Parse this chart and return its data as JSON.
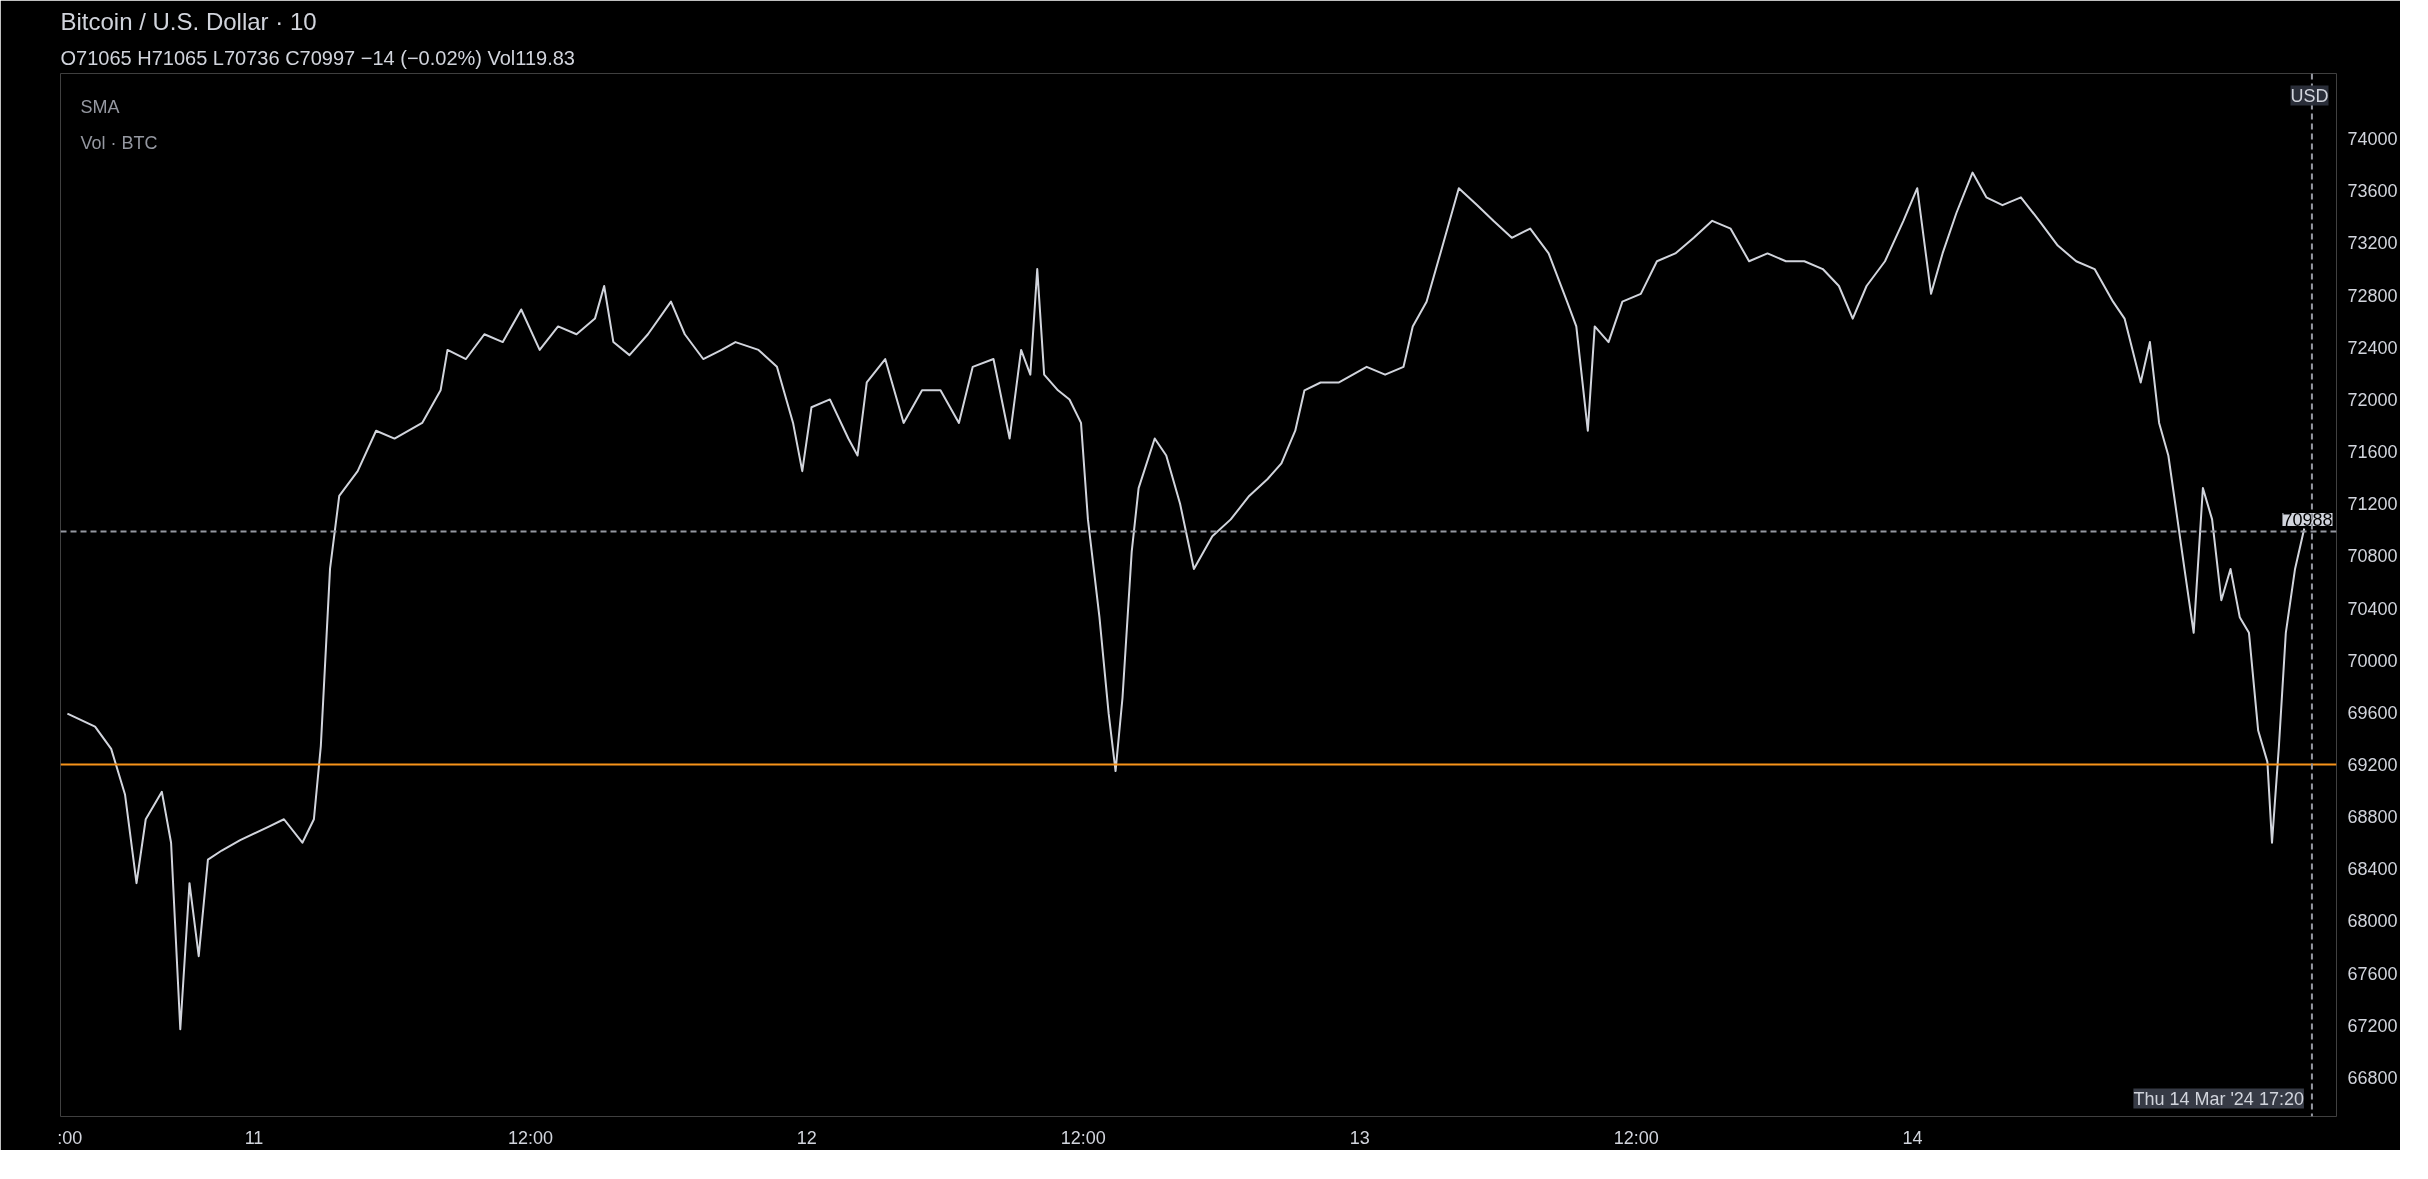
{
  "chart_data": {
    "type": "line",
    "title": "Bitcoin / U.S. Dollar · 10",
    "subtitle": "O71065 H71065 L70736 C70997 −14 (−0.02%) Vol119.83",
    "annotations": [
      "SMA",
      "Vol · BTC",
      "USD"
    ],
    "x": [
      "2024-03-10T15:54",
      "2024-03-10T17:06",
      "2024-03-10T17:48",
      "2024-03-10T18:24",
      "2024-03-10T18:54",
      "2024-03-10T19:18",
      "2024-03-10T20:00",
      "2024-03-10T20:24",
      "2024-03-10T20:48",
      "2024-03-10T21:12",
      "2024-03-10T21:36",
      "2024-03-10T22:00",
      "2024-03-10T22:36",
      "2024-03-10T23:24",
      "2024-03-11T00:36",
      "2024-03-11T01:18",
      "2024-03-11T02:06",
      "2024-03-11T02:36",
      "2024-03-11T02:54",
      "2024-03-11T03:18",
      "2024-03-11T03:42",
      "2024-03-11T04:30",
      "2024-03-11T05:18",
      "2024-03-11T06:06",
      "2024-03-11T07:18",
      "2024-03-11T08:06",
      "2024-03-11T08:24",
      "2024-03-11T09:12",
      "2024-03-11T10:00",
      "2024-03-11T10:48",
      "2024-03-11T11:36",
      "2024-03-11T12:24",
      "2024-03-11T13:12",
      "2024-03-11T14:00",
      "2024-03-11T14:48",
      "2024-03-11T15:12",
      "2024-03-11T15:36",
      "2024-03-11T16:18",
      "2024-03-11T17:06",
      "2024-03-11T18:06",
      "2024-03-11T18:42",
      "2024-03-11T19:30",
      "2024-03-11T20:18",
      "2024-03-11T20:54",
      "2024-03-11T21:54",
      "2024-03-11T22:42",
      "2024-03-11T23:24",
      "2024-03-11T23:48",
      "2024-03-12T00:12",
      "2024-03-12T01:00",
      "2024-03-12T01:48",
      "2024-03-12T02:12",
      "2024-03-12T02:36",
      "2024-03-12T03:24",
      "2024-03-12T04:12",
      "2024-03-12T05:00",
      "2024-03-12T05:48",
      "2024-03-12T06:36",
      "2024-03-12T07:12",
      "2024-03-12T08:06",
      "2024-03-12T08:48",
      "2024-03-12T09:18",
      "2024-03-12T09:42",
      "2024-03-12T10:00",
      "2024-03-12T10:18",
      "2024-03-12T10:54",
      "2024-03-12T11:24",
      "2024-03-12T11:54",
      "2024-03-12T12:12",
      "2024-03-12T12:42",
      "2024-03-12T13:06",
      "2024-03-12T13:24",
      "2024-03-12T13:42",
      "2024-03-12T14:06",
      "2024-03-12T14:24",
      "2024-03-12T15:06",
      "2024-03-12T15:36",
      "2024-03-12T16:12",
      "2024-03-12T16:48",
      "2024-03-12T17:36",
      "2024-03-12T18:24",
      "2024-03-12T19:12",
      "2024-03-12T20:00",
      "2024-03-12T20:36",
      "2024-03-12T21:12",
      "2024-03-12T21:36",
      "2024-03-12T22:18",
      "2024-03-12T23:06",
      "2024-03-13T00:18",
      "2024-03-13T01:06",
      "2024-03-13T01:54",
      "2024-03-13T02:18",
      "2024-03-13T02:54",
      "2024-03-13T03:30",
      "2024-03-13T04:18",
      "2024-03-13T05:06",
      "2024-03-13T05:48",
      "2024-03-13T06:36",
      "2024-03-13T07:24",
      "2024-03-13T08:12",
      "2024-03-13T09:00",
      "2024-03-13T09:24",
      "2024-03-13T09:54",
      "2024-03-13T10:12",
      "2024-03-13T10:48",
      "2024-03-13T11:24",
      "2024-03-13T12:12",
      "2024-03-13T12:54",
      "2024-03-13T13:42",
      "2024-03-13T14:30",
      "2024-03-13T15:18",
      "2024-03-13T16:06",
      "2024-03-13T16:54",
      "2024-03-13T17:42",
      "2024-03-13T18:30",
      "2024-03-13T19:18",
      "2024-03-13T20:06",
      "2024-03-13T20:48",
      "2024-03-13T21:24",
      "2024-03-13T22:00",
      "2024-03-13T22:48",
      "2024-03-13T23:36",
      "2024-03-14T00:12",
      "2024-03-14T00:48",
      "2024-03-14T01:18",
      "2024-03-14T01:54",
      "2024-03-14T02:36",
      "2024-03-14T03:12",
      "2024-03-14T03:54",
      "2024-03-14T04:42",
      "2024-03-14T05:30",
      "2024-03-14T06:18",
      "2024-03-14T07:06",
      "2024-03-14T07:54",
      "2024-03-14T08:42",
      "2024-03-14T09:12",
      "2024-03-14T09:54",
      "2024-03-14T10:18",
      "2024-03-14T10:42",
      "2024-03-14T11:06",
      "2024-03-14T11:24",
      "2024-03-14T11:48",
      "2024-03-14T12:12",
      "2024-03-14T12:36",
      "2024-03-14T13:00",
      "2024-03-14T13:24",
      "2024-03-14T13:48",
      "2024-03-14T14:12",
      "2024-03-14T14:36",
      "2024-03-14T15:00",
      "2024-03-14T15:24",
      "2024-03-14T15:36",
      "2024-03-14T15:54",
      "2024-03-14T16:12",
      "2024-03-14T16:36",
      "2024-03-14T17:00"
    ],
    "series": [
      {
        "color": "#d1d4dc",
        "values": [
          69590,
          69490,
          69320,
          68970,
          68290,
          68780,
          68990,
          68600,
          67170,
          68290,
          67730,
          68470,
          68540,
          68620,
          68720,
          68780,
          68600,
          68780,
          69340,
          70700,
          71260,
          71450,
          71760,
          71700,
          71820,
          72070,
          72380,
          72310,
          72500,
          72440,
          72690,
          72380,
          72560,
          72500,
          72620,
          72870,
          72440,
          72340,
          72500,
          72750,
          72500,
          72310,
          72380,
          72440,
          72380,
          72250,
          71820,
          71450,
          71940,
          72000,
          71700,
          71570,
          72130,
          72310,
          71820,
          72070,
          72070,
          71820,
          72250,
          72310,
          71700,
          72380,
          72190,
          73000,
          72190,
          72070,
          72000,
          71820,
          71080,
          70330,
          69590,
          69150,
          69710,
          70830,
          71320,
          71700,
          71570,
          71200,
          70700,
          70950,
          71080,
          71260,
          71390,
          71510,
          71760,
          72070,
          72130,
          72130,
          72250,
          72190,
          72250,
          72560,
          72750,
          73120,
          73620,
          73490,
          73370,
          73240,
          73310,
          73120,
          72750,
          72560,
          71760,
          72560,
          72440,
          72750,
          72810,
          73060,
          73120,
          73240,
          73370,
          73310,
          73060,
          73120,
          73060,
          73060,
          73000,
          72870,
          72620,
          72870,
          73060,
          73370,
          73620,
          72810,
          73120,
          73430,
          73740,
          73550,
          73490,
          73550,
          73370,
          73180,
          73060,
          73000,
          72750,
          72620,
          72130,
          72440,
          71820,
          71570,
          71200,
          70700,
          70210,
          71320,
          71080,
          70460,
          70700,
          70330,
          70210,
          69460,
          69220,
          68600,
          69340,
          70210,
          70700,
          71010
        ]
      }
    ],
    "xlim": [
      "2024-03-10T15:36",
      "2024-03-14T18:24"
    ],
    "ylim": [
      66500,
      74500
    ],
    "xticks": [
      {
        "value": "2024-03-10T16:00",
        "label": ":00"
      },
      {
        "value": "2024-03-11",
        "label": "11"
      },
      {
        "value": "2024-03-11T12:00",
        "label": "12:00"
      },
      {
        "value": "2024-03-12",
        "label": "12"
      },
      {
        "value": "2024-03-12T12:00",
        "label": "12:00"
      },
      {
        "value": "2024-03-13",
        "label": "13"
      },
      {
        "value": "2024-03-13T12:00",
        "label": "12:00"
      },
      {
        "value": "2024-03-14",
        "label": "14"
      }
    ],
    "yticks": [
      66800,
      67200,
      67600,
      68000,
      68400,
      68800,
      69200,
      69600,
      70000,
      70400,
      70800,
      71200,
      71600,
      72000,
      72400,
      72800,
      73200,
      73600,
      74000
    ],
    "ref_lines": [
      {
        "axis": "y",
        "value": 69200,
        "label": null,
        "color": "#f7931a",
        "line_style": "solid"
      },
      {
        "axis": "y",
        "value": 70988,
        "label": "70988",
        "color": "#9598a1",
        "line_style": "dashed"
      },
      {
        "axis": "x",
        "value": "2024-03-14T17:20",
        "label": "Thu 14 Mar '24 17:20",
        "color": "#9598a1",
        "line_style": "dashed"
      }
    ],
    "grid": false,
    "marker": "none",
    "line_style": "solid"
  }
}
